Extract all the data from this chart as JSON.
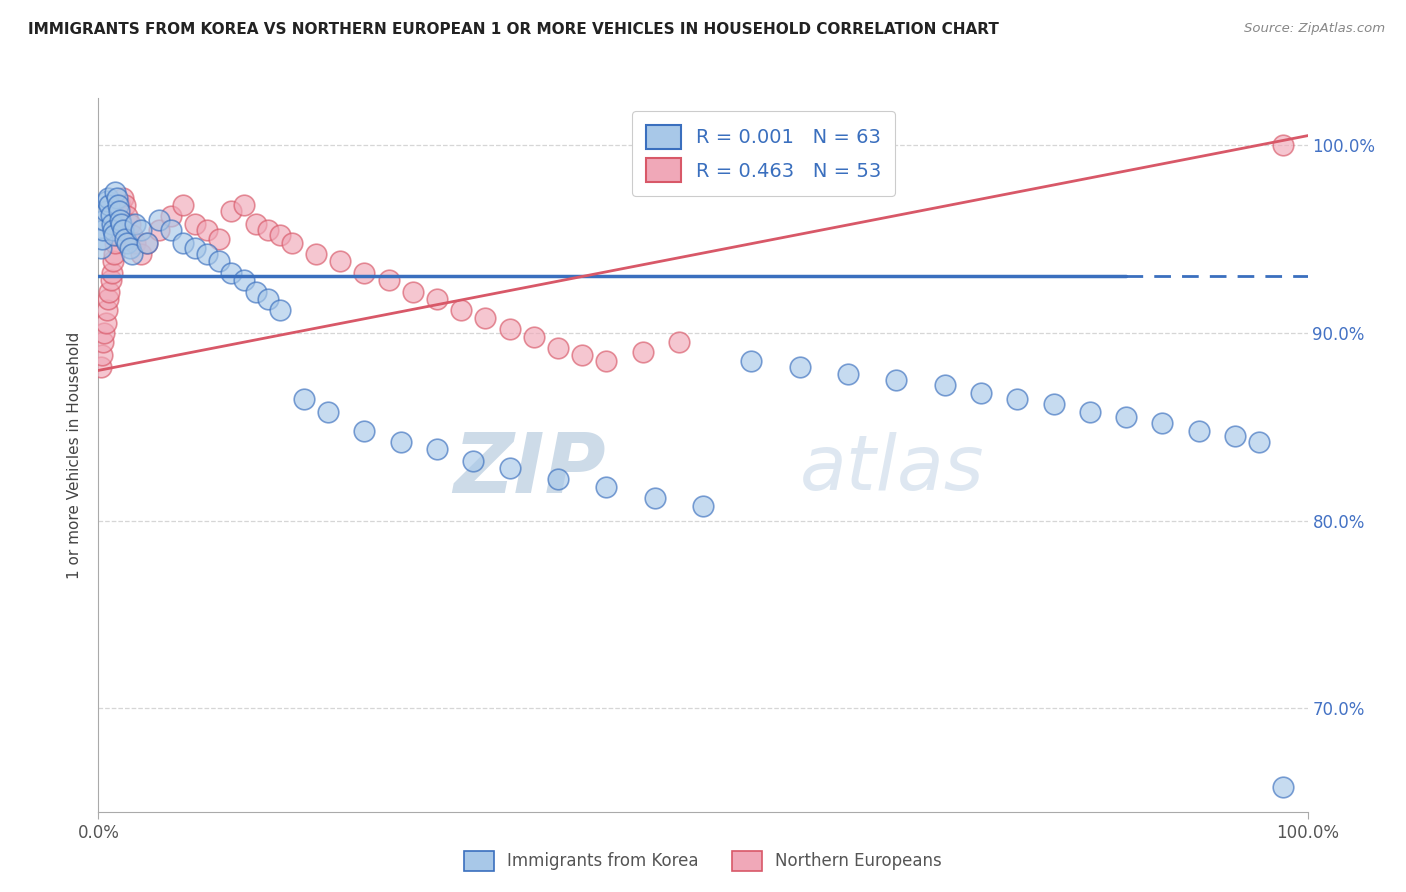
{
  "title": "IMMIGRANTS FROM KOREA VS NORTHERN EUROPEAN 1 OR MORE VEHICLES IN HOUSEHOLD CORRELATION CHART",
  "source": "Source: ZipAtlas.com",
  "ylabel_left": "1 or more Vehicles in Household",
  "xlim": [
    0.0,
    1.0
  ],
  "ylim": [
    0.645,
    1.025
  ],
  "yticks": [
    0.7,
    0.8,
    0.9,
    1.0
  ],
  "ytick_labels": [
    "70.0%",
    "80.0%",
    "90.0%",
    "100.0%"
  ],
  "korea_R": 0.001,
  "korea_N": 63,
  "ne_R": 0.463,
  "ne_N": 53,
  "korea_color": "#a8c8e8",
  "ne_color": "#f0a8b8",
  "korea_line_color": "#3a6fbe",
  "ne_line_color": "#d85868",
  "watermark_color": "#ccddf0",
  "background_color": "#ffffff",
  "grid_color": "#cccccc",
  "title_color": "#222222",
  "axis_label_color": "#444444",
  "legend_color": "#3a6fbe",
  "korea_line_solid_end": 0.85,
  "korea_x": [
    0.002,
    0.003,
    0.004,
    0.005,
    0.006,
    0.007,
    0.008,
    0.009,
    0.01,
    0.011,
    0.012,
    0.013,
    0.014,
    0.015,
    0.016,
    0.017,
    0.018,
    0.019,
    0.02,
    0.022,
    0.024,
    0.026,
    0.028,
    0.03,
    0.035,
    0.04,
    0.05,
    0.06,
    0.07,
    0.08,
    0.09,
    0.1,
    0.11,
    0.12,
    0.13,
    0.14,
    0.15,
    0.17,
    0.19,
    0.22,
    0.25,
    0.28,
    0.31,
    0.34,
    0.38,
    0.42,
    0.46,
    0.5,
    0.54,
    0.58,
    0.62,
    0.66,
    0.7,
    0.73,
    0.76,
    0.79,
    0.82,
    0.85,
    0.88,
    0.91,
    0.94,
    0.96,
    0.98
  ],
  "korea_y": [
    0.945,
    0.95,
    0.955,
    0.96,
    0.965,
    0.97,
    0.972,
    0.968,
    0.963,
    0.958,
    0.955,
    0.952,
    0.975,
    0.972,
    0.968,
    0.965,
    0.96,
    0.958,
    0.955,
    0.95,
    0.948,
    0.945,
    0.942,
    0.958,
    0.955,
    0.948,
    0.96,
    0.955,
    0.948,
    0.945,
    0.942,
    0.938,
    0.932,
    0.928,
    0.922,
    0.918,
    0.912,
    0.865,
    0.858,
    0.848,
    0.842,
    0.838,
    0.832,
    0.828,
    0.822,
    0.818,
    0.812,
    0.808,
    0.885,
    0.882,
    0.878,
    0.875,
    0.872,
    0.868,
    0.865,
    0.862,
    0.858,
    0.855,
    0.852,
    0.848,
    0.845,
    0.842,
    0.658
  ],
  "ne_x": [
    0.002,
    0.003,
    0.004,
    0.005,
    0.006,
    0.007,
    0.008,
    0.009,
    0.01,
    0.011,
    0.012,
    0.013,
    0.014,
    0.015,
    0.016,
    0.017,
    0.018,
    0.02,
    0.022,
    0.024,
    0.026,
    0.028,
    0.03,
    0.035,
    0.04,
    0.05,
    0.06,
    0.07,
    0.08,
    0.09,
    0.1,
    0.11,
    0.12,
    0.13,
    0.14,
    0.15,
    0.16,
    0.18,
    0.2,
    0.22,
    0.24,
    0.26,
    0.28,
    0.3,
    0.32,
    0.34,
    0.36,
    0.38,
    0.4,
    0.42,
    0.45,
    0.48,
    0.98
  ],
  "ne_y": [
    0.882,
    0.888,
    0.895,
    0.9,
    0.905,
    0.912,
    0.918,
    0.922,
    0.928,
    0.932,
    0.938,
    0.942,
    0.948,
    0.952,
    0.958,
    0.962,
    0.968,
    0.972,
    0.968,
    0.962,
    0.958,
    0.952,
    0.948,
    0.942,
    0.948,
    0.955,
    0.962,
    0.968,
    0.958,
    0.955,
    0.95,
    0.965,
    0.968,
    0.958,
    0.955,
    0.952,
    0.948,
    0.942,
    0.938,
    0.932,
    0.928,
    0.922,
    0.918,
    0.912,
    0.908,
    0.902,
    0.898,
    0.892,
    0.888,
    0.885,
    0.89,
    0.895,
    1.0
  ],
  "korea_trendline_y": [
    0.9305,
    0.9305
  ],
  "ne_trendline_start_y": 0.88,
  "ne_trendline_end_y": 1.005
}
